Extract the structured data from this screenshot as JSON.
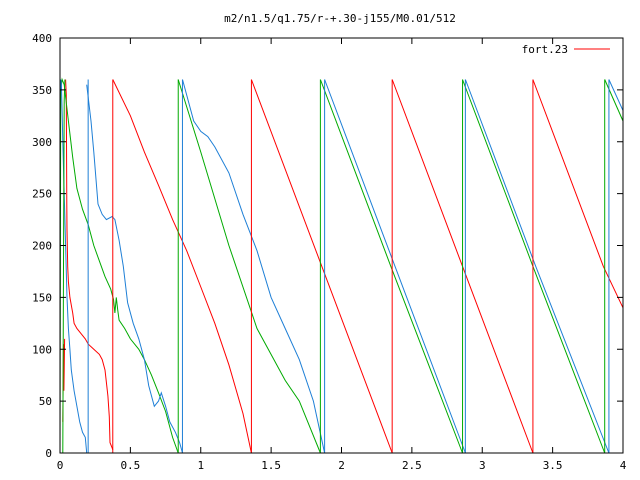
{
  "chart_data": {
    "type": "line",
    "title": "m2/n1.5/q1.75/r-+.30-j155/M0.01/512",
    "xlabel": "",
    "ylabel": "",
    "xlim": [
      0,
      4
    ],
    "ylim": [
      0,
      400
    ],
    "xticks": [
      0,
      0.5,
      1,
      1.5,
      2,
      2.5,
      3,
      3.5,
      4
    ],
    "xtick_labels": [
      "0",
      "0.5",
      "1",
      "1.5",
      "2",
      "2.5",
      "3",
      "3.5",
      "4"
    ],
    "yticks": [
      0,
      50,
      100,
      150,
      200,
      250,
      300,
      350,
      400
    ],
    "ytick_labels": [
      "0",
      "50",
      "100",
      "150",
      "200",
      "250",
      "300",
      "350",
      "400"
    ],
    "grid": false,
    "legend": {
      "placement": "top-right",
      "entries": [
        "fort.23"
      ]
    },
    "series": [
      {
        "name": "fort.23",
        "color": "#ff0000",
        "segments": [
          [
            [
              0.02,
              30
            ],
            [
              0.025,
              105
            ],
            [
              0.028,
              60
            ],
            [
              0.03,
              80
            ],
            [
              0.033,
              110
            ]
          ],
          [
            [
              0.04,
              360
            ],
            [
              0.045,
              345
            ],
            [
              0.048,
              240
            ],
            [
              0.05,
              215
            ],
            [
              0.055,
              180
            ],
            [
              0.06,
              165
            ],
            [
              0.07,
              150
            ],
            [
              0.09,
              135
            ],
            [
              0.1,
              125
            ],
            [
              0.12,
              120
            ],
            [
              0.15,
              115
            ],
            [
              0.18,
              110
            ],
            [
              0.2,
              105
            ],
            [
              0.24,
              100
            ],
            [
              0.28,
              95
            ],
            [
              0.3,
              90
            ],
            [
              0.32,
              80
            ],
            [
              0.34,
              55
            ],
            [
              0.35,
              35
            ],
            [
              0.355,
              10
            ],
            [
              0.37,
              5
            ],
            [
              0.375,
              3
            ]
          ],
          [
            [
              0.375,
              360
            ],
            [
              0.5,
              325
            ],
            [
              0.6,
              290
            ],
            [
              0.7,
              258
            ],
            [
              0.8,
              225
            ],
            [
              0.9,
              195
            ],
            [
              1.0,
              160
            ],
            [
              1.1,
              125
            ],
            [
              1.2,
              85
            ],
            [
              1.3,
              38
            ],
            [
              1.36,
              0
            ]
          ],
          [
            [
              1.36,
              360
            ],
            [
              1.86,
              180
            ],
            [
              2.36,
              0
            ]
          ],
          [
            [
              2.36,
              360
            ],
            [
              2.86,
              180
            ],
            [
              3.36,
              0
            ]
          ],
          [
            [
              3.36,
              360
            ],
            [
              3.86,
              180
            ],
            [
              4.0,
              140
            ]
          ]
        ]
      },
      {
        "name": "",
        "color": "#00aa00",
        "segments": [
          [
            [
              0,
              0
            ],
            [
              0.005,
              350
            ],
            [
              0.015,
              360
            ],
            [
              0.03,
              355
            ],
            [
              0.06,
              320
            ],
            [
              0.09,
              285
            ],
            [
              0.12,
              255
            ],
            [
              0.16,
              235
            ],
            [
              0.2,
              220
            ],
            [
              0.24,
              200
            ],
            [
              0.28,
              185
            ],
            [
              0.32,
              170
            ],
            [
              0.36,
              158
            ],
            [
              0.38,
              148
            ],
            [
              0.39,
              135
            ],
            [
              0.4,
              150
            ],
            [
              0.41,
              138
            ],
            [
              0.42,
              128
            ],
            [
              0.46,
              120
            ],
            [
              0.5,
              110
            ],
            [
              0.56,
              100
            ],
            [
              0.6,
              90
            ],
            [
              0.65,
              75
            ],
            [
              0.7,
              58
            ],
            [
              0.75,
              40
            ],
            [
              0.8,
              15
            ],
            [
              0.84,
              0
            ]
          ],
          [
            [
              0.84,
              360
            ],
            [
              1.0,
              290
            ],
            [
              1.2,
              200
            ],
            [
              1.4,
              120
            ],
            [
              1.6,
              70
            ],
            [
              1.7,
              50
            ],
            [
              1.85,
              0
            ]
          ],
          [
            [
              1.85,
              360
            ],
            [
              2.35,
              180
            ],
            [
              2.86,
              0
            ]
          ],
          [
            [
              2.86,
              360
            ],
            [
              3.36,
              180
            ],
            [
              3.87,
              0
            ]
          ],
          [
            [
              3.87,
              360
            ],
            [
              4.0,
              320
            ]
          ]
        ]
      },
      {
        "name": "",
        "color": "#1e7fd6",
        "segments": [
          [
            [
              0.003,
              350
            ],
            [
              0.006,
              360
            ],
            [
              0.01,
              355
            ],
            [
              0.015,
              330
            ],
            [
              0.02,
              300
            ],
            [
              0.03,
              250
            ],
            [
              0.04,
              200
            ],
            [
              0.05,
              150
            ],
            [
              0.06,
              120
            ],
            [
              0.07,
              100
            ],
            [
              0.08,
              80
            ],
            [
              0.1,
              60
            ],
            [
              0.12,
              45
            ],
            [
              0.14,
              30
            ],
            [
              0.16,
              20
            ],
            [
              0.18,
              15
            ],
            [
              0.19,
              0
            ]
          ],
          [
            [
              0.19,
              355
            ],
            [
              0.22,
              320
            ],
            [
              0.24,
              290
            ],
            [
              0.27,
              240
            ],
            [
              0.3,
              230
            ],
            [
              0.33,
              225
            ],
            [
              0.37,
              228
            ],
            [
              0.39,
              225
            ],
            [
              0.42,
              205
            ],
            [
              0.45,
              180
            ],
            [
              0.48,
              145
            ],
            [
              0.52,
              125
            ],
            [
              0.56,
              110
            ],
            [
              0.6,
              90
            ],
            [
              0.63,
              65
            ],
            [
              0.67,
              45
            ],
            [
              0.7,
              50
            ],
            [
              0.72,
              58
            ],
            [
              0.75,
              45
            ],
            [
              0.78,
              30
            ],
            [
              0.82,
              20
            ],
            [
              0.85,
              10
            ],
            [
              0.87,
              0
            ]
          ],
          [
            [
              0.87,
              360
            ],
            [
              0.95,
              320
            ],
            [
              1.0,
              310
            ],
            [
              1.05,
              305
            ],
            [
              1.1,
              295
            ],
            [
              1.2,
              270
            ],
            [
              1.3,
              230
            ],
            [
              1.4,
              195
            ],
            [
              1.5,
              150
            ],
            [
              1.6,
              120
            ],
            [
              1.7,
              90
            ],
            [
              1.8,
              50
            ],
            [
              1.88,
              0
            ]
          ],
          [
            [
              1.88,
              360
            ],
            [
              2.38,
              180
            ],
            [
              2.88,
              0
            ]
          ],
          [
            [
              2.88,
              360
            ],
            [
              3.38,
              180
            ],
            [
              3.9,
              0
            ]
          ],
          [
            [
              3.9,
              360
            ],
            [
              4.0,
              330
            ]
          ]
        ]
      },
      {
        "name": "",
        "color": "#00aa00",
        "segments": [
          [
            [
              0.02,
              0
            ],
            [
              0.025,
              180
            ],
            [
              0.03,
              340
            ],
            [
              0.035,
              360
            ]
          ]
        ]
      }
    ],
    "vertical_lines": [
      {
        "x": 0.2,
        "color": "#1e7fd6"
      },
      {
        "x": 0.375,
        "color": "#ff0000"
      },
      {
        "x": 0.84,
        "color": "#00aa00"
      },
      {
        "x": 0.87,
        "color": "#1e7fd6"
      },
      {
        "x": 1.36,
        "color": "#ff0000"
      },
      {
        "x": 1.85,
        "color": "#00aa00"
      },
      {
        "x": 1.88,
        "color": "#1e7fd6"
      },
      {
        "x": 2.36,
        "color": "#ff0000"
      },
      {
        "x": 2.86,
        "color": "#00aa00"
      },
      {
        "x": 2.88,
        "color": "#1e7fd6"
      },
      {
        "x": 3.36,
        "color": "#ff0000"
      },
      {
        "x": 3.87,
        "color": "#00aa00"
      },
      {
        "x": 3.9,
        "color": "#1e7fd6"
      }
    ]
  }
}
